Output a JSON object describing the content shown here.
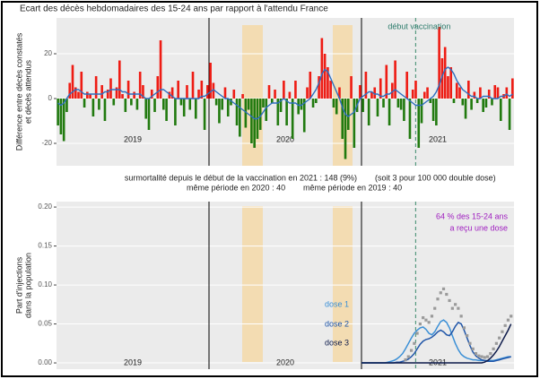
{
  "chart_data": [
    {
      "type": "bar",
      "title": "Ecart des décès hebdomadaires des 15-24 ans par rapport à l'attendu France",
      "y_label": [
        "Différence entre décès constatés",
        "et décès attendus"
      ],
      "categories": [
        null,
        null,
        null,
        null,
        null,
        null,
        null,
        null,
        null,
        null,
        null,
        null,
        null,
        null,
        null,
        null,
        null,
        null,
        null,
        null,
        null,
        null,
        null,
        null,
        null,
        null,
        null,
        null,
        null,
        null,
        null,
        null,
        null,
        null,
        null,
        null,
        null,
        null,
        null,
        null,
        null,
        null,
        null,
        null,
        null,
        null,
        null,
        null,
        null,
        null,
        null,
        null,
        null,
        null,
        null,
        null,
        null,
        null,
        null,
        null,
        null,
        null,
        null,
        null,
        null,
        null,
        null,
        null,
        null,
        null,
        null,
        null,
        null,
        null,
        null,
        null,
        null,
        null,
        null,
        null,
        null,
        null,
        null,
        null,
        null,
        null,
        null,
        null,
        null,
        null,
        null,
        null,
        null,
        null,
        null,
        null,
        null,
        null,
        null,
        null,
        null,
        null,
        null,
        null,
        null,
        null,
        null,
        null,
        null,
        null,
        null,
        null,
        null,
        null,
        null,
        null,
        null,
        null,
        null,
        null,
        null,
        null,
        null,
        null,
        null,
        null,
        null,
        null,
        null,
        null,
        null,
        null,
        null,
        null,
        null,
        null,
        null,
        null,
        null,
        null,
        null,
        null,
        null,
        null,
        null,
        null,
        null,
        null,
        null,
        null,
        null,
        null,
        null,
        null,
        null,
        null
      ],
      "values": [
        -12,
        -16,
        -19,
        -6,
        7,
        15,
        5,
        3,
        12,
        -4,
        3,
        2,
        -8,
        10,
        -5,
        6,
        -10,
        4,
        9,
        -3,
        5,
        17,
        2,
        -6,
        8,
        -3,
        3,
        -5,
        12,
        6,
        -9,
        -14,
        4,
        -6,
        10,
        26,
        -5,
        -10,
        3,
        5,
        -12,
        8,
        -3,
        -8,
        6,
        -5,
        12,
        -9,
        4,
        8,
        -14,
        6,
        16,
        7,
        -3,
        -11,
        -5,
        5,
        -8,
        -3,
        4,
        -12,
        -17,
        2,
        -13,
        -5,
        -20,
        -22,
        -18,
        -14,
        -4,
        -10,
        6,
        -2,
        4,
        -12,
        -6,
        8,
        -12,
        3,
        -18,
        8,
        -7,
        -5,
        -15,
        5,
        12,
        -4,
        -2,
        10,
        27,
        20,
        14,
        8,
        -4,
        -7,
        5,
        -18,
        -27,
        -14,
        10,
        -22,
        -6,
        6,
        -6,
        12,
        -12,
        3,
        5,
        -8,
        9,
        -4,
        15,
        -12,
        7,
        17,
        -4,
        -5,
        -10,
        12,
        -18,
        4,
        8,
        -22,
        -11,
        3,
        5,
        -2,
        -10,
        -12,
        32,
        18,
        23,
        10,
        14,
        -2,
        7,
        5,
        -3,
        -9,
        8,
        -5,
        3,
        -2,
        5,
        -6,
        -4,
        4,
        -3,
        6,
        5,
        -10,
        2,
        5,
        -14,
        9
      ],
      "positive_color": "#ee1c14",
      "negative_color": "#217a0f",
      "smooth": {
        "color": "#2d6ebf",
        "values": [
          -2,
          -3,
          -2,
          0,
          2,
          3,
          4,
          4,
          3,
          2,
          2,
          2,
          2,
          2,
          2,
          2,
          3,
          3,
          4,
          4,
          4,
          4,
          3,
          3,
          2,
          2,
          2,
          2,
          2,
          1,
          0,
          0,
          1,
          2,
          3,
          4,
          4,
          3,
          2,
          1,
          0,
          0,
          0,
          0,
          0,
          0,
          0,
          0,
          0,
          1,
          1,
          2,
          3,
          4,
          3,
          2,
          1,
          0,
          0,
          -1,
          -2,
          -3,
          -4,
          -5,
          -6,
          -7,
          -8,
          -9,
          -9,
          -8,
          -6,
          -4,
          -3,
          -2,
          -2,
          -2,
          -1,
          0,
          -1,
          -2,
          -2,
          -2,
          -3,
          -3,
          -2,
          -1,
          0,
          2,
          4,
          7,
          11,
          13,
          12,
          9,
          6,
          3,
          0,
          -4,
          -7,
          -8,
          -7,
          -6,
          -3,
          0,
          1,
          2,
          3,
          3,
          2,
          2,
          1,
          1,
          2,
          2,
          3,
          4,
          3,
          2,
          1,
          0,
          -1,
          -2,
          -3,
          -3,
          -3,
          -2,
          -1,
          0,
          1,
          3,
          6,
          10,
          13,
          14,
          13,
          11,
          8,
          6,
          4,
          3,
          2,
          1,
          1,
          0,
          0,
          1,
          1,
          1,
          0,
          0,
          0,
          1,
          1,
          2,
          1,
          2
        ]
      },
      "ylim": [
        -30,
        36
      ],
      "yticks": [
        -20,
        0,
        20
      ],
      "grid": true,
      "year_labels": [
        "2019",
        "2020",
        "2021"
      ],
      "vaccination_label": "début vaccination",
      "notes": [
        "surmortalité depuis le début de la vaccination en 2021 : 148  (9%)",
        "(soit 3 pour 100 000 double dose)",
        "même période en 2020 : 40",
        "même période en 2019 : 40"
      ]
    },
    {
      "type": "line",
      "y_label": [
        "Part d'injections",
        "dans la population"
      ],
      "x": [
        104,
        105,
        106,
        107,
        108,
        109,
        110,
        111,
        112,
        113,
        114,
        115,
        116,
        117,
        118,
        119,
        120,
        121,
        122,
        123,
        124,
        125,
        126,
        127,
        128,
        129,
        130,
        131,
        132,
        133,
        134,
        135,
        136,
        137,
        138,
        139,
        140,
        141,
        142,
        143,
        144,
        145,
        146,
        147,
        148,
        149,
        150,
        151,
        152,
        153,
        154,
        155
      ],
      "xlim": [
        0,
        156
      ],
      "ylim": [
        -0.008,
        0.207
      ],
      "yticks": [
        {
          "value": 0,
          "label": "0.00"
        },
        {
          "value": 0.05,
          "label": "0.05"
        },
        {
          "value": 0.1,
          "label": "0.10"
        },
        {
          "value": 0.15,
          "label": "0.15"
        },
        {
          "value": 0.2,
          "label": "0.20"
        }
      ],
      "grid": true,
      "series": [
        {
          "name": "dose 1",
          "color": "#3a8fd6",
          "values": [
            0,
            0,
            0,
            0,
            0,
            0,
            0,
            0,
            0,
            0.001,
            0.002,
            0.003,
            0.005,
            0.008,
            0.012,
            0.018,
            0.025,
            0.032,
            0.038,
            0.042,
            0.045,
            0.046,
            0.043,
            0.038,
            0.036,
            0.04,
            0.047,
            0.053,
            0.055,
            0.052,
            0.045,
            0.035,
            0.025,
            0.017,
            0.011,
            0.008,
            0.006,
            0.005,
            0.004,
            0.004,
            0.003,
            0.003,
            0.003,
            0.003,
            0.003,
            0.003,
            0.004,
            0.005,
            0.006,
            0.007,
            0.008,
            0.008
          ]
        },
        {
          "name": "dose 2",
          "color": "#1f55a8",
          "values": [
            0,
            0,
            0,
            0,
            0,
            0,
            0,
            0,
            0,
            0,
            0,
            0,
            0.001,
            0.001,
            0.002,
            0.003,
            0.005,
            0.008,
            0.012,
            0.018,
            0.024,
            0.028,
            0.03,
            0.031,
            0.033,
            0.036,
            0.04,
            0.042,
            0.04,
            0.036,
            0.035,
            0.04,
            0.047,
            0.052,
            0.05,
            0.042,
            0.032,
            0.022,
            0.014,
            0.009,
            0.006,
            0.004,
            0.003,
            0.002,
            0.002,
            0.002,
            0.003,
            0.004,
            0.005,
            0.006,
            0.007,
            0.008
          ]
        },
        {
          "name": "dose 3",
          "color": "#0d1a4a",
          "values": [
            0,
            0,
            0,
            0,
            0,
            0,
            0,
            0,
            0,
            0,
            0,
            0,
            0,
            0,
            0,
            0,
            0,
            0,
            0,
            0,
            0,
            0,
            0,
            0,
            0,
            0,
            0,
            0,
            0,
            0,
            0,
            0,
            0,
            0,
            0,
            0,
            0,
            0,
            0,
            0,
            0,
            0,
            0.001,
            0.003,
            0.006,
            0.01,
            0.015,
            0.021,
            0.028,
            0.035,
            0.042,
            0.05
          ]
        },
        {
          "color": "#9a9a9a",
          "style": "points",
          "values": [
            null,
            null,
            null,
            null,
            null,
            null,
            null,
            null,
            null,
            null,
            null,
            null,
            null,
            null,
            null,
            0.004,
            0.008,
            0.016,
            0.025,
            0.038,
            0.05,
            0.058,
            0.055,
            0.052,
            0.06,
            0.07,
            0.082,
            0.09,
            0.095,
            0.088,
            0.08,
            0.07,
            0.075,
            0.07,
            0.06,
            0.045,
            0.035,
            0.025,
            0.018,
            0.012,
            0.009,
            0.008,
            0.007,
            0.008,
            0.012,
            0.018,
            0.025,
            0.032,
            0.04,
            0.048,
            0.055,
            0.06
          ]
        }
      ],
      "year_labels": [
        "2019",
        "2020",
        "2021"
      ],
      "annotation": [
        "64 % des 15-24 ans",
        "a reçu une dose"
      ],
      "annotation_color": "#a020c0"
    }
  ]
}
